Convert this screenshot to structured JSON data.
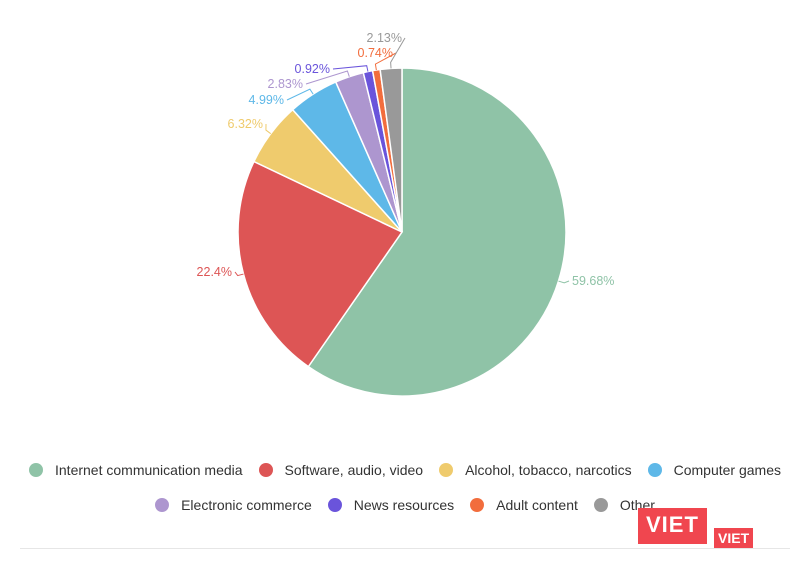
{
  "chart_data": {
    "type": "pie",
    "title": "",
    "slices": [
      {
        "name": "Internet communication media",
        "value": 59.68,
        "label": "59.68%",
        "color": "#8fc3a7"
      },
      {
        "name": "Software, audio, video",
        "value": 22.4,
        "label": "22.4%",
        "color": "#dd5555"
      },
      {
        "name": "Alcohol, tobacco, narcotics",
        "value": 6.32,
        "label": "6.32%",
        "color": "#efcb6d"
      },
      {
        "name": "Computer games",
        "value": 4.99,
        "label": "4.99%",
        "color": "#5eb8e8"
      },
      {
        "name": "Electronic commerce",
        "value": 2.83,
        "label": "2.83%",
        "color": "#ad96cf"
      },
      {
        "name": "News resources",
        "value": 0.92,
        "label": "0.92%",
        "color": "#6a54db"
      },
      {
        "name": "Adult content",
        "value": 0.74,
        "label": "0.74%",
        "color": "#f26d3d"
      },
      {
        "name": "Other",
        "value": 2.13,
        "label": "2.13%",
        "color": "#999999"
      }
    ],
    "legend_position": "bottom"
  },
  "logo": {
    "main": "VIET",
    "sub": "VIET"
  }
}
